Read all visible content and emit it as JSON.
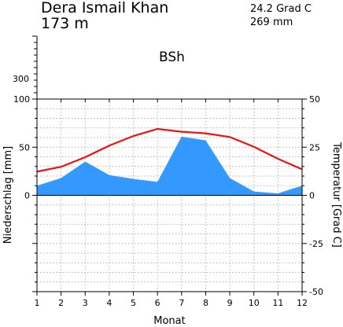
{
  "header": {
    "station": "Dera Ismail Khan",
    "elevation": "173 m",
    "temp_mean": "24.2 Grad C",
    "precip_total": "269 mm",
    "climate_class": "BSh"
  },
  "chart_data": {
    "type": "area",
    "categories": [
      "1",
      "2",
      "3",
      "4",
      "5",
      "6",
      "7",
      "8",
      "9",
      "10",
      "11",
      "12"
    ],
    "series": [
      {
        "axis": "left",
        "type": "area",
        "color": "#3399ff",
        "values": [
          10,
          18,
          35,
          21,
          17,
          14,
          61,
          57,
          18,
          4,
          2,
          10
        ]
      },
      {
        "axis": "right",
        "type": "line",
        "color": "#ee1111",
        "values": [
          12.3,
          14.8,
          19.8,
          25.8,
          30.8,
          34.5,
          33.0,
          32.2,
          30.3,
          25.2,
          19.0,
          13.5
        ]
      }
    ],
    "xlabel": "Monat",
    "ylabel_left": "Niederschlag [mm]",
    "ylabel_right": "Temperatur [Grad C]",
    "ylim_left": [
      -100,
      100
    ],
    "ylim_right": [
      -50,
      50
    ],
    "left_ticks": [
      "100",
      "50",
      "0"
    ],
    "left_upper_tick": "300",
    "right_ticks": [
      "50",
      "25",
      "0",
      "-25",
      "-50"
    ],
    "grid": true
  }
}
